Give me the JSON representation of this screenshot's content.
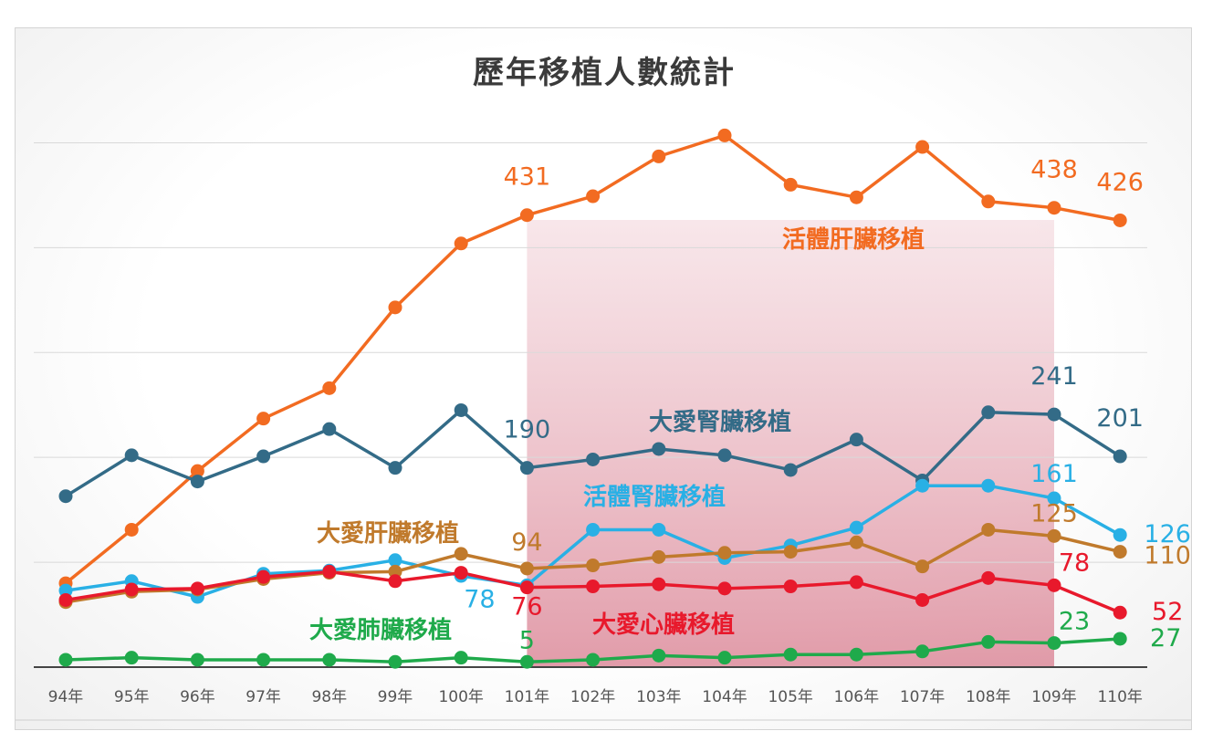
{
  "chart_data": {
    "type": "line",
    "title": "歷年移植人數統計",
    "categories": [
      "94年",
      "95年",
      "96年",
      "97年",
      "98年",
      "99年",
      "100年",
      "101年",
      "102年",
      "103年",
      "104年",
      "105年",
      "106年",
      "107年",
      "108年",
      "109年",
      "110年"
    ],
    "ylim": [
      0,
      550
    ],
    "grid": true,
    "highlight_range": [
      "101年",
      "109年"
    ],
    "series": [
      {
        "name": "活體肝臟移植",
        "color": "#f26b21",
        "values": [
          80,
          131,
          187,
          237,
          266,
          343,
          404,
          431,
          449,
          487,
          507,
          460,
          448,
          496,
          444,
          438,
          426
        ],
        "labels": {
          "101年": "431",
          "109年": "438",
          "110年": "426"
        }
      },
      {
        "name": "大愛腎臟移植",
        "color": "#336b87",
        "values": [
          163,
          202,
          177,
          201,
          227,
          190,
          245,
          190,
          198,
          208,
          202,
          188,
          217,
          178,
          243,
          241,
          201
        ],
        "labels": {
          "101年": "190",
          "109年": "241",
          "110年": "201"
        }
      },
      {
        "name": "活體腎臟移植",
        "color": "#29b0e5",
        "values": [
          73,
          82,
          67,
          89,
          92,
          102,
          87,
          78,
          131,
          131,
          104,
          116,
          133,
          173,
          173,
          161,
          126
        ],
        "labels": {
          "101年": "78",
          "109年": "161",
          "110年": "126"
        }
      },
      {
        "name": "大愛肝臟移植",
        "color": "#c07a2c",
        "values": [
          62,
          72,
          74,
          84,
          90,
          91,
          108,
          94,
          97,
          105,
          109,
          110,
          119,
          96,
          131,
          125,
          110
        ],
        "labels": {
          "101年": "94",
          "109年": "125",
          "110年": "110"
        }
      },
      {
        "name": "大愛心臟移植",
        "color": "#e8192c",
        "values": [
          64,
          74,
          75,
          86,
          91,
          82,
          90,
          76,
          77,
          79,
          75,
          77,
          81,
          64,
          85,
          78,
          52
        ],
        "labels": {
          "101年": "76",
          "109年": "78",
          "110年": "52"
        }
      },
      {
        "name": "大愛肺臟移植",
        "color": "#1faa4b",
        "values": [
          7,
          9,
          7,
          7,
          7,
          5,
          9,
          5,
          7,
          11,
          9,
          12,
          12,
          15,
          24,
          23,
          27
        ],
        "labels": {
          "101年": "5",
          "109年": "23",
          "110年": "27"
        }
      }
    ]
  }
}
